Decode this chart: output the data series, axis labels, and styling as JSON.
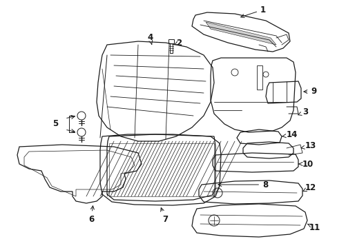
{
  "background_color": "#ffffff",
  "line_color": "#1a1a1a",
  "fig_width": 4.89,
  "fig_height": 3.6,
  "dpi": 100,
  "label_fontsize": 8.5,
  "arrow_lw": 0.7,
  "part_lw": 0.9
}
